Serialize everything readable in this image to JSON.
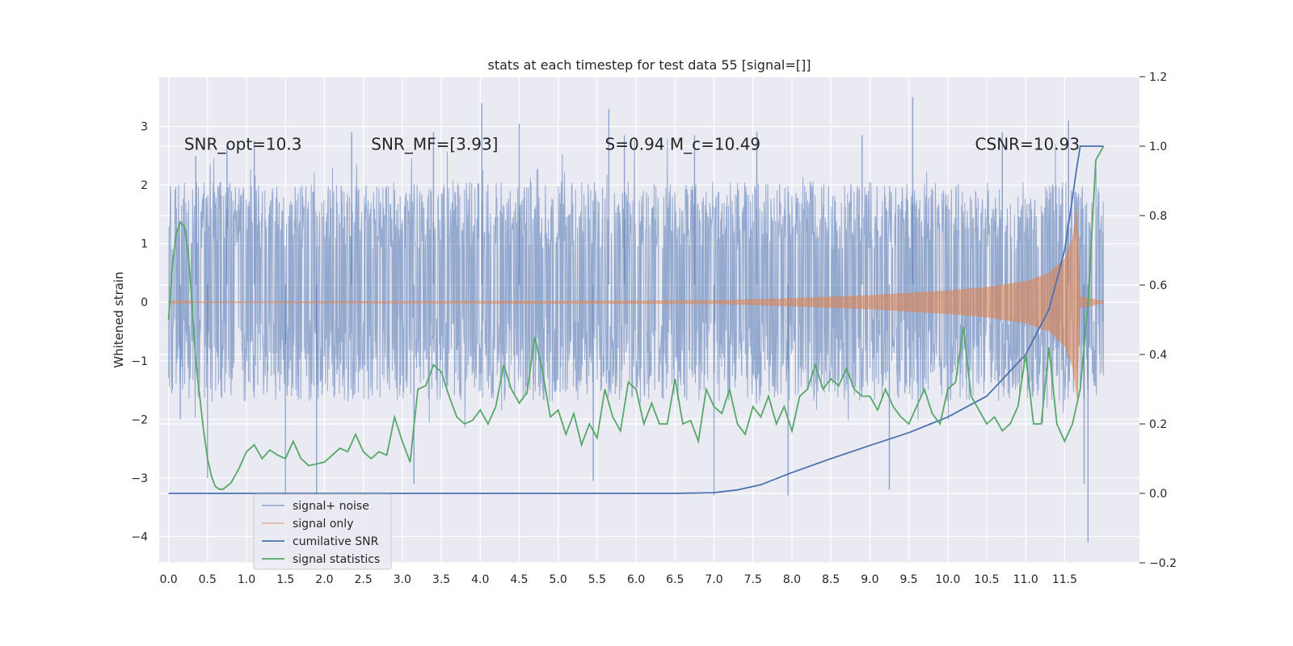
{
  "chart_data": {
    "type": "line",
    "title": "stats at each timestep for test data 55 [signal=[]]",
    "ylabel": "Whitened strain",
    "xlim": [
      -0.12,
      12.46
    ],
    "ylim": [
      -4.45,
      3.85
    ],
    "y2lim": [
      -0.2,
      1.2
    ],
    "x_ticks": [
      0.0,
      0.5,
      1.0,
      1.5,
      2.0,
      2.5,
      3.0,
      3.5,
      4.0,
      4.5,
      5.0,
      5.5,
      6.0,
      6.5,
      7.0,
      7.5,
      8.0,
      8.5,
      9.0,
      9.5,
      10.0,
      10.5,
      11.0,
      11.5
    ],
    "x_tick_labels": [
      "0.0",
      "0.5",
      "1.0",
      "1.5",
      "2.0",
      "2.5",
      "3.0",
      "3.5",
      "4.0",
      "4.5",
      "5.0",
      "5.5",
      "6.0",
      "6.5",
      "7.0",
      "7.5",
      "8.0",
      "8.5",
      "9.0",
      "9.5",
      "10.0",
      "10.5",
      "11.0",
      "11.5"
    ],
    "y_ticks": [
      -4,
      -3,
      -2,
      -1,
      0,
      1,
      2,
      3
    ],
    "y_tick_labels": [
      "−4",
      "−3",
      "−2",
      "−1",
      "0",
      "1",
      "2",
      "3"
    ],
    "y2_ticks": [
      -0.2,
      0.0,
      0.2,
      0.4,
      0.6,
      0.8,
      1.0,
      1.2
    ],
    "y2_tick_labels": [
      "−0.2",
      "0.0",
      "0.2",
      "0.4",
      "0.6",
      "0.8",
      "1.0",
      "1.2"
    ],
    "annotations": [
      {
        "id": "snr-opt",
        "x": 0.2,
        "y": 2.7,
        "text": "SNR_opt=10.3"
      },
      {
        "id": "snr-mf",
        "x": 2.6,
        "y": 2.7,
        "text": "SNR_MF=[3.93]"
      },
      {
        "id": "spin",
        "x": 5.6,
        "y": 2.7,
        "text": "S=0.94   M_c=10.49"
      },
      {
        "id": "csnr",
        "x": 10.35,
        "y": 2.7,
        "text": "CSNR=10.93"
      }
    ],
    "legend": {
      "location": "lower-left",
      "entries": [
        {
          "label": "signal+ noise",
          "color": "#4c72b0"
        },
        {
          "label": "signal only",
          "color": "#dd8452"
        },
        {
          "label": "cumilative SNR",
          "color": "#4c72b0"
        },
        {
          "label": "signal statistics",
          "color": "#55a868"
        }
      ]
    },
    "series": [
      {
        "name": "signal+ noise",
        "axis": "left",
        "color": "#4c72b0",
        "style": "dense noise trace, values mostly within about [-1.7, 2.0] with spikes",
        "x_range": [
          0.0,
          12.0
        ],
        "band_low": -1.7,
        "band_high": 2.0,
        "spikes": [
          {
            "x": 0.15,
            "y": -2.0
          },
          {
            "x": 0.35,
            "y": 2.5
          },
          {
            "x": 0.5,
            "y": -3.0
          },
          {
            "x": 0.75,
            "y": 2.7
          },
          {
            "x": 1.1,
            "y": 2.75
          },
          {
            "x": 1.5,
            "y": -3.3
          },
          {
            "x": 1.9,
            "y": -3.3
          },
          {
            "x": 2.35,
            "y": 2.9
          },
          {
            "x": 3.15,
            "y": -3.1
          },
          {
            "x": 3.4,
            "y": 2.9
          },
          {
            "x": 4.02,
            "y": 3.4
          },
          {
            "x": 4.5,
            "y": 3.05
          },
          {
            "x": 5.45,
            "y": -3.05
          },
          {
            "x": 5.65,
            "y": 3.3
          },
          {
            "x": 5.85,
            "y": 2.85
          },
          {
            "x": 6.75,
            "y": 2.85
          },
          {
            "x": 7.0,
            "y": -3.3
          },
          {
            "x": 7.55,
            "y": 2.9
          },
          {
            "x": 7.95,
            "y": -3.3
          },
          {
            "x": 8.9,
            "y": 2.85
          },
          {
            "x": 9.25,
            "y": -3.2
          },
          {
            "x": 9.55,
            "y": 3.5
          },
          {
            "x": 10.7,
            "y": 2.9
          },
          {
            "x": 11.55,
            "y": 3.1
          },
          {
            "x": 11.8,
            "y": -4.1
          },
          {
            "x": 11.75,
            "y": -3.1
          }
        ]
      },
      {
        "name": "signal only",
        "axis": "left",
        "color": "#dd8452",
        "style": "chirp envelope growing toward merger",
        "x_range": [
          0.0,
          12.0
        ],
        "envelope": [
          {
            "x": 0.0,
            "y": 0.01
          },
          {
            "x": 7.0,
            "y": 0.03
          },
          {
            "x": 8.0,
            "y": 0.07
          },
          {
            "x": 9.0,
            "y": 0.12
          },
          {
            "x": 10.0,
            "y": 0.2
          },
          {
            "x": 10.5,
            "y": 0.26
          },
          {
            "x": 11.0,
            "y": 0.36
          },
          {
            "x": 11.3,
            "y": 0.5
          },
          {
            "x": 11.5,
            "y": 0.75
          },
          {
            "x": 11.6,
            "y": 1.1
          },
          {
            "x": 11.66,
            "y": 1.65
          },
          {
            "x": 11.7,
            "y": 0.1
          },
          {
            "x": 12.0,
            "y": 0.02
          }
        ]
      },
      {
        "name": "cumilative SNR",
        "axis": "right",
        "color": "#4c72b0",
        "x": [
          0.0,
          2.0,
          4.0,
          6.0,
          6.5,
          7.0,
          7.3,
          7.6,
          8.0,
          8.5,
          9.0,
          9.5,
          10.0,
          10.5,
          11.0,
          11.3,
          11.5,
          11.6,
          11.65,
          11.7,
          12.0
        ],
        "y": [
          0.0,
          0.0,
          0.0,
          0.0,
          0.0,
          0.002,
          0.01,
          0.025,
          0.06,
          0.1,
          0.138,
          0.175,
          0.22,
          0.28,
          0.4,
          0.53,
          0.7,
          0.85,
          0.93,
          1.0,
          1.0
        ]
      },
      {
        "name": "signal statistics",
        "axis": "right",
        "color": "#55a868",
        "x": [
          0.0,
          0.05,
          0.1,
          0.15,
          0.2,
          0.25,
          0.3,
          0.35,
          0.4,
          0.45,
          0.5,
          0.55,
          0.6,
          0.65,
          0.7,
          0.8,
          0.9,
          1.0,
          1.1,
          1.2,
          1.3,
          1.4,
          1.5,
          1.6,
          1.7,
          1.8,
          1.9,
          2.0,
          2.1,
          2.2,
          2.3,
          2.4,
          2.5,
          2.6,
          2.7,
          2.8,
          2.9,
          3.0,
          3.1,
          3.2,
          3.3,
          3.4,
          3.5,
          3.6,
          3.7,
          3.8,
          3.9,
          4.0,
          4.1,
          4.2,
          4.3,
          4.4,
          4.5,
          4.6,
          4.7,
          4.8,
          4.9,
          5.0,
          5.1,
          5.2,
          5.3,
          5.4,
          5.5,
          5.6,
          5.7,
          5.8,
          5.9,
          6.0,
          6.1,
          6.2,
          6.3,
          6.4,
          6.5,
          6.6,
          6.7,
          6.8,
          6.9,
          7.0,
          7.1,
          7.2,
          7.3,
          7.4,
          7.5,
          7.6,
          7.7,
          7.8,
          7.9,
          8.0,
          8.1,
          8.2,
          8.3,
          8.4,
          8.5,
          8.6,
          8.7,
          8.8,
          8.9,
          9.0,
          9.1,
          9.2,
          9.3,
          9.4,
          9.5,
          9.6,
          9.7,
          9.8,
          9.9,
          10.0,
          10.1,
          10.2,
          10.3,
          10.4,
          10.5,
          10.6,
          10.7,
          10.8,
          10.9,
          11.0,
          11.1,
          11.2,
          11.3,
          11.4,
          11.5,
          11.6,
          11.7,
          11.8,
          11.9,
          12.0
        ],
        "y": [
          0.5,
          0.66,
          0.75,
          0.78,
          0.77,
          0.7,
          0.55,
          0.38,
          0.28,
          0.18,
          0.1,
          0.05,
          0.02,
          0.012,
          0.012,
          0.03,
          0.07,
          0.12,
          0.14,
          0.1,
          0.125,
          0.11,
          0.1,
          0.15,
          0.1,
          0.08,
          0.085,
          0.09,
          0.11,
          0.13,
          0.12,
          0.17,
          0.12,
          0.1,
          0.12,
          0.11,
          0.22,
          0.15,
          0.09,
          0.3,
          0.31,
          0.37,
          0.35,
          0.28,
          0.22,
          0.2,
          0.21,
          0.24,
          0.2,
          0.25,
          0.37,
          0.3,
          0.26,
          0.29,
          0.45,
          0.35,
          0.22,
          0.24,
          0.17,
          0.23,
          0.14,
          0.2,
          0.16,
          0.3,
          0.22,
          0.18,
          0.32,
          0.3,
          0.2,
          0.26,
          0.2,
          0.2,
          0.33,
          0.2,
          0.21,
          0.15,
          0.3,
          0.25,
          0.23,
          0.3,
          0.2,
          0.17,
          0.25,
          0.22,
          0.28,
          0.2,
          0.25,
          0.18,
          0.28,
          0.3,
          0.37,
          0.3,
          0.33,
          0.31,
          0.36,
          0.3,
          0.28,
          0.28,
          0.24,
          0.3,
          0.25,
          0.22,
          0.2,
          0.25,
          0.3,
          0.23,
          0.2,
          0.3,
          0.32,
          0.48,
          0.28,
          0.24,
          0.2,
          0.22,
          0.18,
          0.2,
          0.25,
          0.4,
          0.2,
          0.2,
          0.42,
          0.2,
          0.15,
          0.2,
          0.3,
          0.55,
          0.96,
          1.0
        ]
      }
    ]
  }
}
